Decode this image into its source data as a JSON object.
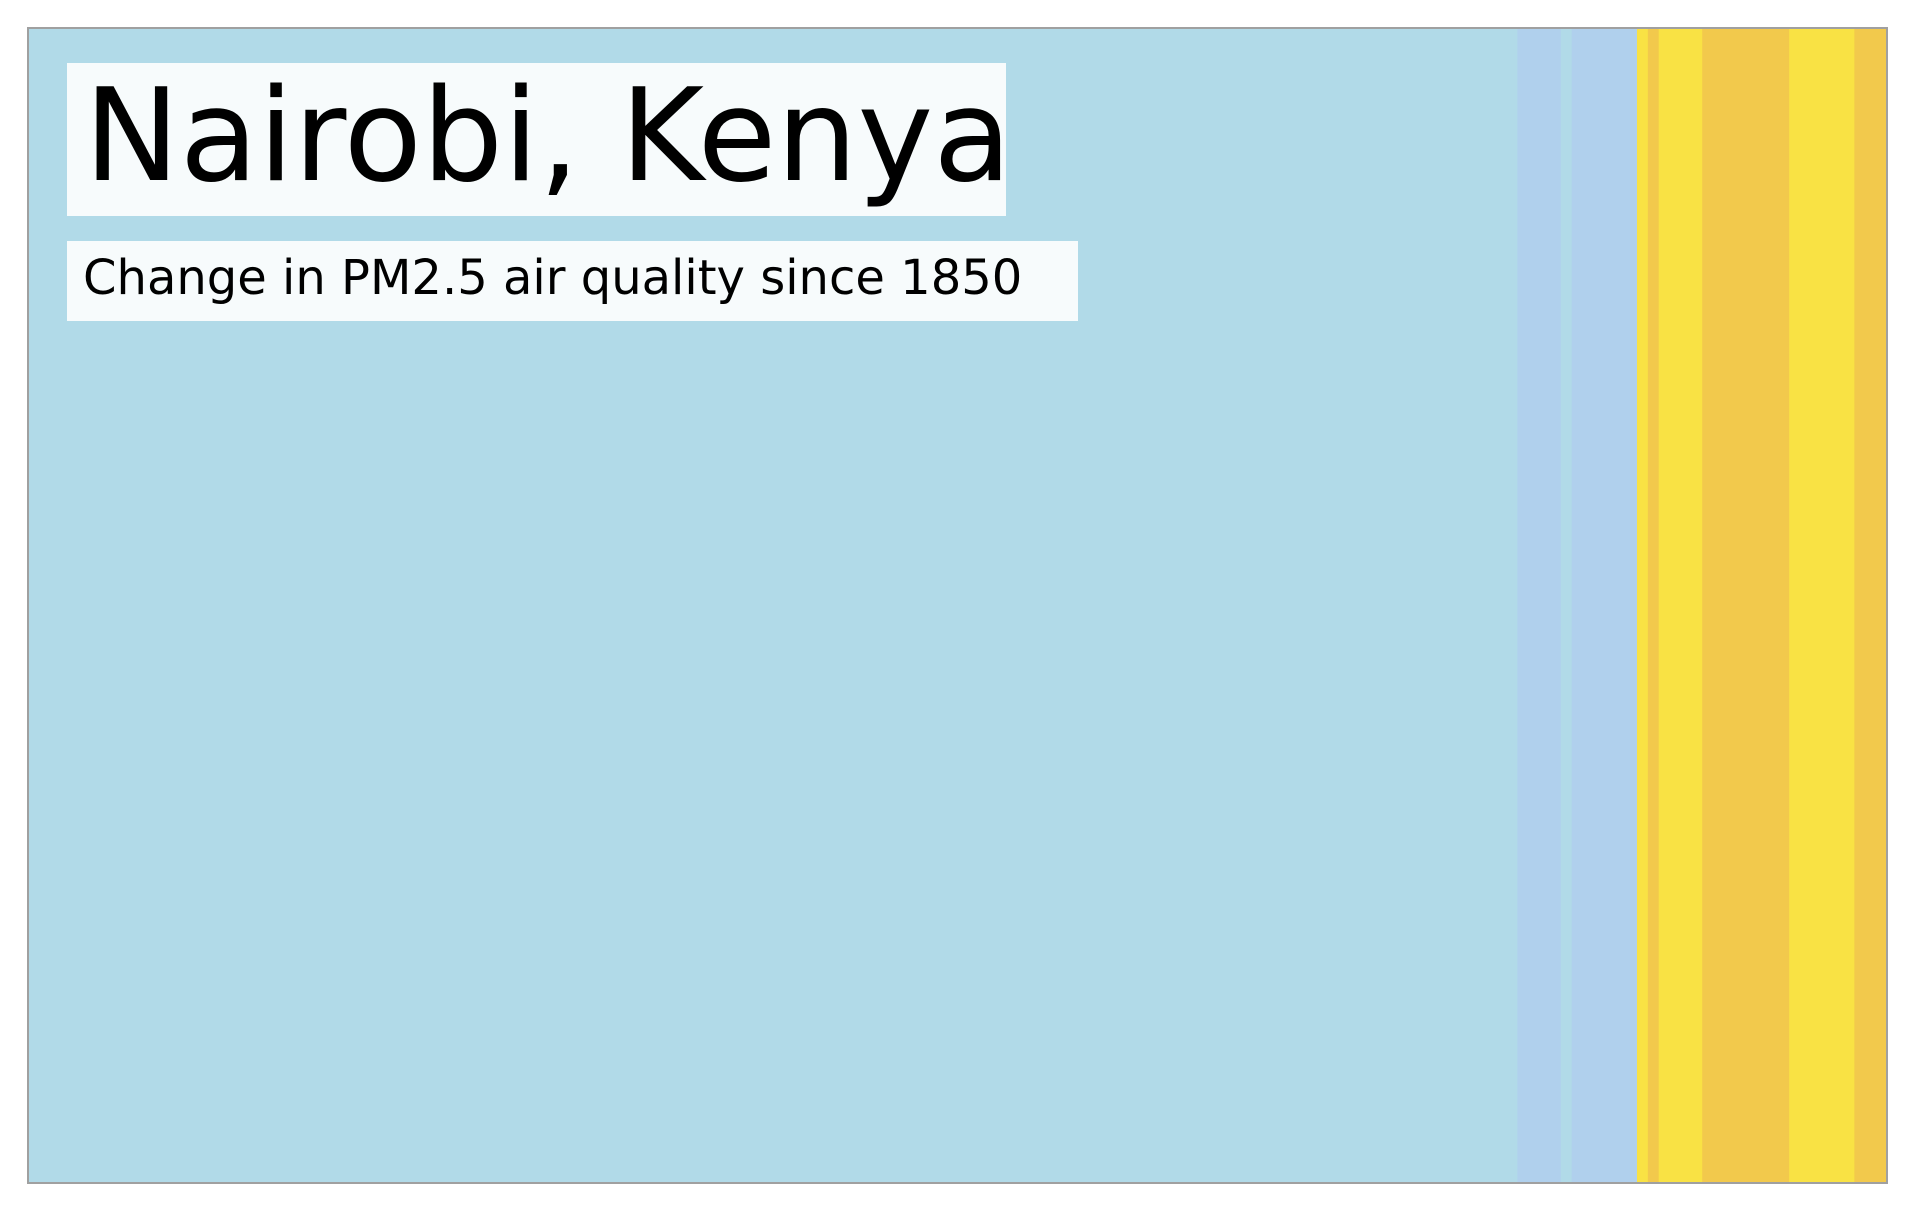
{
  "chart_data": {
    "type": "heatmap",
    "title": "Nairobi, Kenya",
    "subtitle": "Change in PM2.5 air quality since 1850",
    "x_range": [
      1850,
      2021
    ],
    "stripes": [
      {
        "from": 1850,
        "to": 1987,
        "color": "#b1dae8"
      },
      {
        "from": 1987,
        "to": 1991,
        "color": "#b0d0ed"
      },
      {
        "from": 1991,
        "to": 1992,
        "color": "#b1dae8"
      },
      {
        "from": 1992,
        "to": 1998,
        "color": "#b0d0ed"
      },
      {
        "from": 1998,
        "to": 1999,
        "color": "#f9e244"
      },
      {
        "from": 1999,
        "to": 2000,
        "color": "#f2c94c"
      },
      {
        "from": 2000,
        "to": 2004,
        "color": "#f9e244"
      },
      {
        "from": 2004,
        "to": 2012,
        "color": "#f2c94c"
      },
      {
        "from": 2012,
        "to": 2018,
        "color": "#f9e244"
      },
      {
        "from": 2018,
        "to": 2021,
        "color": "#f2c94c"
      }
    ],
    "legend": "none",
    "grid": false
  },
  "colors": {
    "frame": "#a0a0a0",
    "label_box": "#f7fbfc",
    "text": "#000000"
  }
}
